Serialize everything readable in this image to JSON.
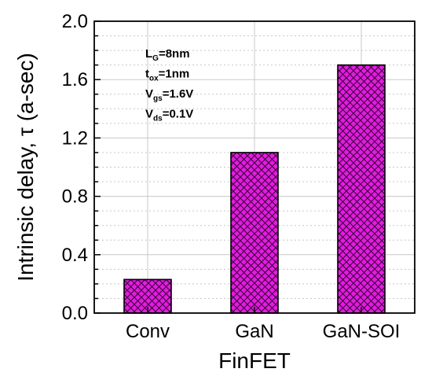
{
  "chart_data": {
    "type": "bar",
    "xlabel": "FinFET",
    "ylabel": "Intrinsic delay, τ (a-sec)",
    "categories": [
      "Conv",
      "GaN",
      "GaN-SOI"
    ],
    "values": [
      0.23,
      1.1,
      1.7
    ],
    "ylim": [
      0.0,
      2.0
    ],
    "yticks": [
      "0.0",
      "0.4",
      "0.8",
      "1.2",
      "1.6",
      "2.0"
    ],
    "grid": true,
    "bar_color": "#e21ce0",
    "hatch_color": "#3a003a",
    "annotations": [
      {
        "main": "L",
        "sub": "G",
        "rest": "=8nm"
      },
      {
        "main": "t",
        "sub": "ox",
        "rest": "=1nm"
      },
      {
        "main": "V",
        "sub": "gs",
        "rest": "=1.6V"
      },
      {
        "main": "V",
        "sub": "ds",
        "rest": "=0.1V"
      }
    ]
  }
}
